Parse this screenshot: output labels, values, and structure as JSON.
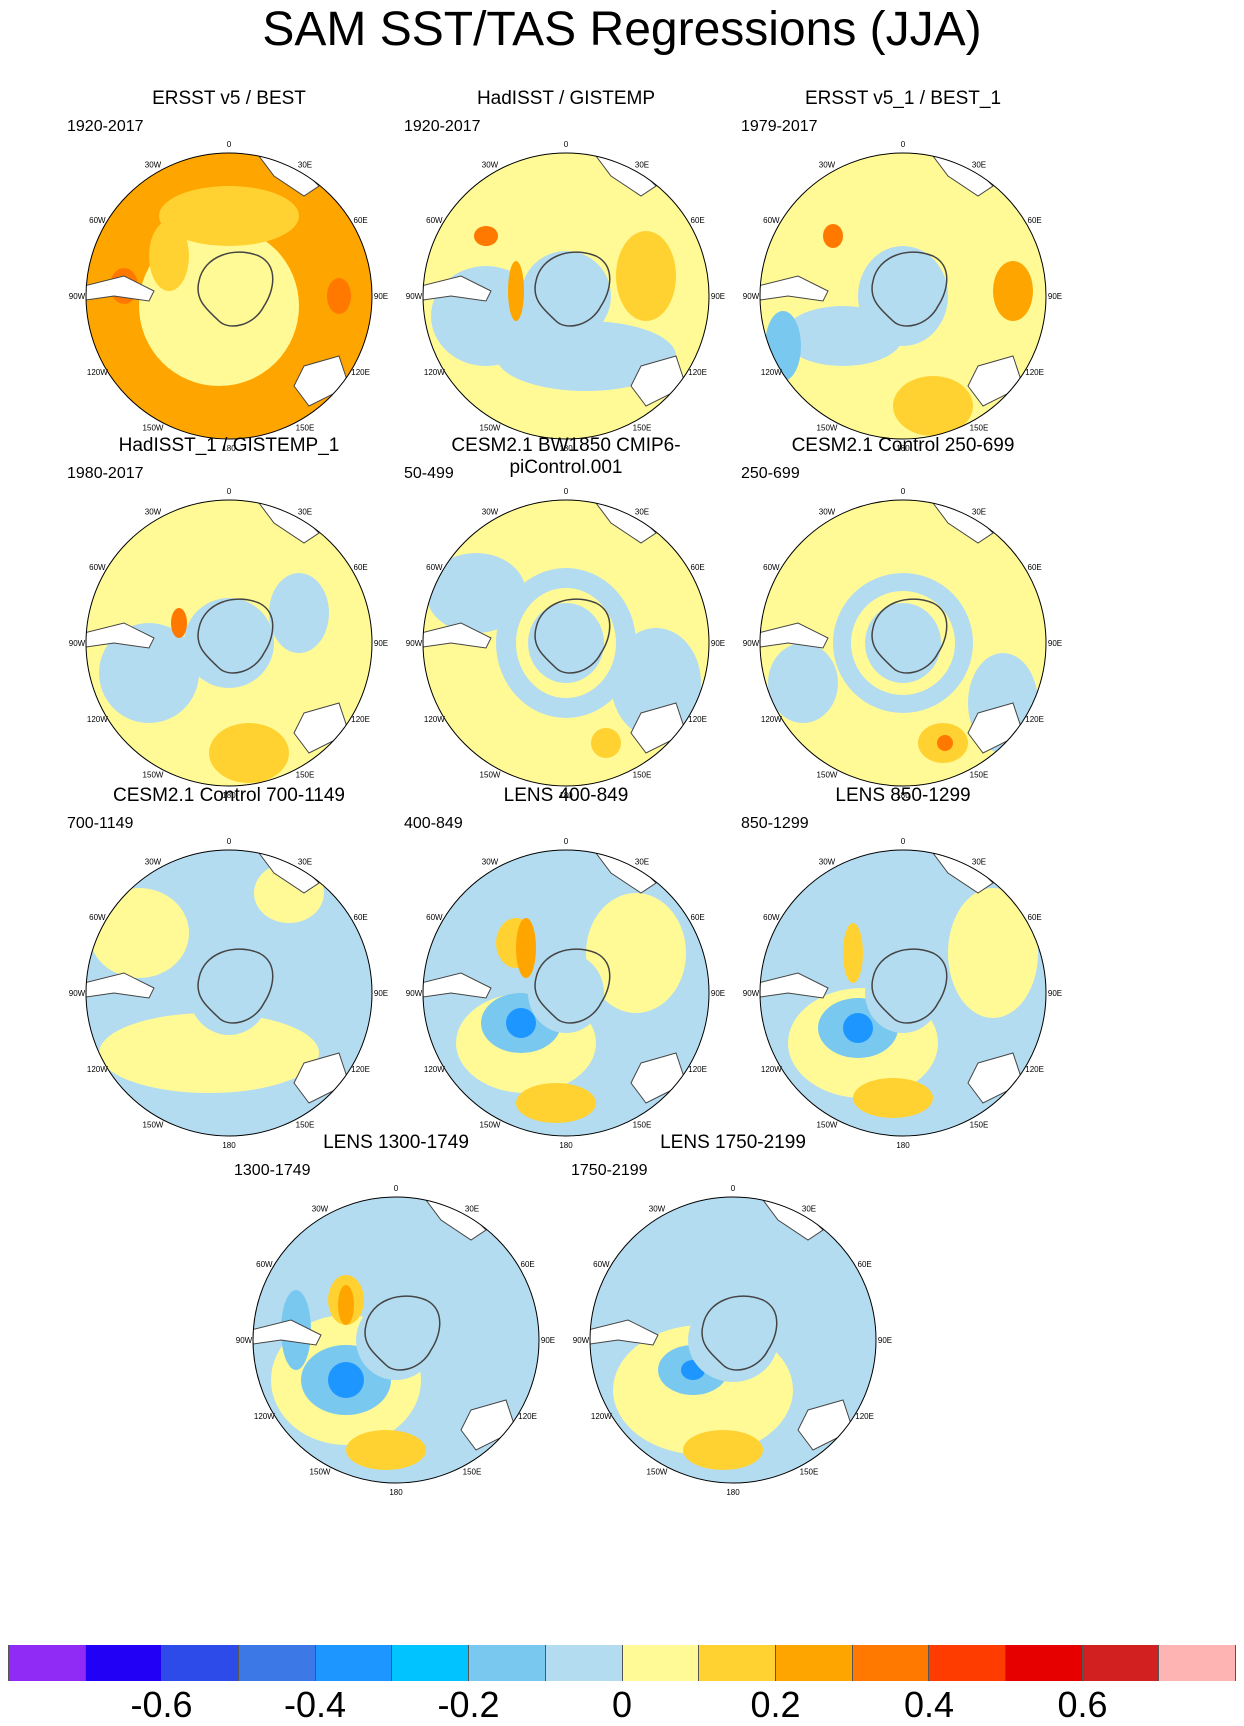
{
  "title": "SAM SST/TAS Regressions (JJA)",
  "lon_labels": [
    "0",
    "30E",
    "60E",
    "90E",
    "120E",
    "150E",
    "180",
    "150W",
    "120W",
    "90W",
    "60W",
    "30W"
  ],
  "panels": [
    {
      "title": "ERSST v5 / BEST",
      "period": "1920-2017",
      "bg": "#ffa500"
    },
    {
      "title": "HadISST / GISTEMP",
      "period": "1920-2017",
      "bg": "#fffa96"
    },
    {
      "title": "ERSST v5_1 / BEST_1",
      "period": "1979-2017",
      "bg": "#fffa96"
    },
    {
      "title": "HadISST_1 / GISTEMP_1",
      "period": "1980-2017",
      "bg": "#fffa96"
    },
    {
      "title": "CESM2.1 BW1850 CMIP6-piControl.001",
      "period": "50-499",
      "bg": "#fffa96"
    },
    {
      "title": "CESM2.1 Control 250-699",
      "period": "250-699",
      "bg": "#fffa96"
    },
    {
      "title": "CESM2.1 Control 700-1149",
      "period": "700-1149",
      "bg": "#b4dcf0"
    },
    {
      "title": "LENS 400-849",
      "period": "400-849",
      "bg": "#b4dcf0"
    },
    {
      "title": "LENS 850-1299",
      "period": "850-1299",
      "bg": "#b4dcf0"
    },
    {
      "title": "LENS 1300-1749",
      "period": "1300-1749",
      "bg": "#b4dcf0"
    },
    {
      "title": "LENS 1750-2199",
      "period": "1750-2199",
      "bg": "#b4dcf0"
    }
  ],
  "colorbar": {
    "colors": [
      "#8f2bf5",
      "#2200f5",
      "#2c4be8",
      "#3c78e6",
      "#1e96ff",
      "#00c3ff",
      "#78c8f0",
      "#b4dcf0",
      "#fffa96",
      "#ffd232",
      "#ffa500",
      "#ff7800",
      "#ff3c00",
      "#e60000",
      "#d22020",
      "#ffb4b4"
    ],
    "labels": [
      "-0.6",
      "-0.4",
      "-0.2",
      "0",
      "0.2",
      "0.4",
      "0.6"
    ]
  }
}
